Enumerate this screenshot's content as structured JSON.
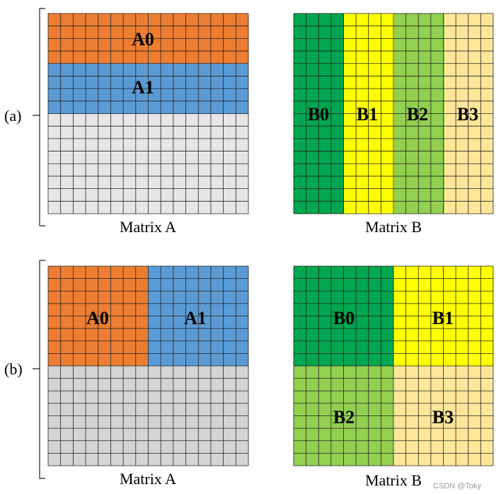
{
  "rows": [
    {
      "label": "(a)",
      "matrix_a": {
        "caption": "Matrix A",
        "blocks": [
          {
            "label": "A0",
            "color": "#ed7d31"
          },
          {
            "label": "A1",
            "color": "#5b9bd5"
          }
        ],
        "empty_color": "#e6e6e6"
      },
      "matrix_b": {
        "caption": "Matrix B",
        "blocks": [
          {
            "label": "B0",
            "color": "#00a650"
          },
          {
            "label": "B1",
            "color": "#ffff00"
          },
          {
            "label": "B2",
            "color": "#92d050"
          },
          {
            "label": "B3",
            "color": "#ffe699"
          }
        ]
      }
    },
    {
      "label": "(b)",
      "matrix_a": {
        "caption": "Matrix A",
        "blocks": [
          {
            "label": "A0",
            "color": "#ed7d31"
          },
          {
            "label": "A1",
            "color": "#5b9bd5"
          }
        ],
        "empty_color": "#d4d4d4"
      },
      "matrix_b": {
        "caption": "Matrix B",
        "blocks": [
          {
            "label": "B0",
            "color": "#00a650"
          },
          {
            "label": "B1",
            "color": "#ffff00"
          },
          {
            "label": "B2",
            "color": "#92d050"
          },
          {
            "label": "B3",
            "color": "#ffe699"
          }
        ]
      }
    }
  ],
  "watermark": "CSDN @Toky",
  "grid_border_color": "#222222"
}
